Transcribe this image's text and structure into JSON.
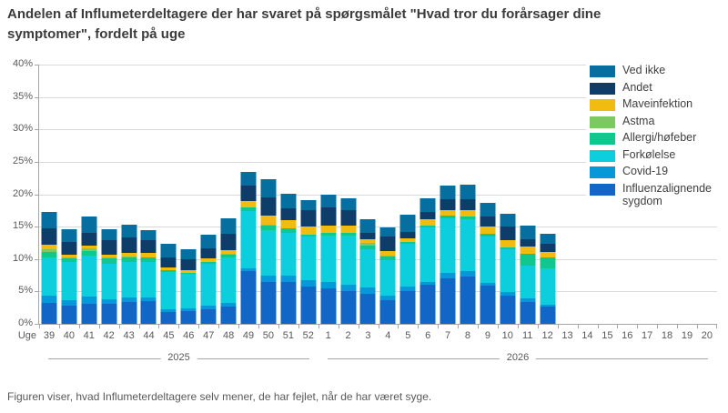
{
  "title": "Andelen af Influmeterdeltagere der har svaret på spørgsmålet \"Hvad tror du forårsager dine symptomer\", fordelt på uge",
  "footer": "Figuren viser, hvad Influmeterdeltagere selv mener, de har fejlet, når de har været syge.",
  "axis": {
    "uge_label": "Uge",
    "y_tick_labels": [
      "40%",
      "35%",
      "30%",
      "25%",
      "20%",
      "15%",
      "10%",
      "5%",
      "0%"
    ],
    "year_groups": [
      {
        "label": "2025",
        "start": 0,
        "count": 14
      },
      {
        "label": "2026",
        "start": 14,
        "count": 20
      }
    ]
  },
  "chart_data": {
    "type": "bar",
    "subtype": "stacked",
    "title": "Andelen af Influmeterdeltagere der har svaret på spørgsmålet \"Hvad tror du forårsager dine symptomer\", fordelt på uge",
    "xlabel": "Uge",
    "ylabel": "",
    "ylim": [
      0,
      40
    ],
    "grid": true,
    "legend_position": "right",
    "categories": [
      "39",
      "40",
      "41",
      "42",
      "43",
      "44",
      "45",
      "46",
      "47",
      "48",
      "49",
      "50",
      "51",
      "52",
      "1",
      "2",
      "3",
      "4",
      "5",
      "6",
      "7",
      "8",
      "9",
      "10",
      "11",
      "12",
      "13",
      "14",
      "15",
      "16",
      "17",
      "18",
      "19",
      "20"
    ],
    "series": [
      {
        "name": "Influenzalignende sygdom",
        "color": "#1267C6",
        "values": [
          3.3,
          2.8,
          3.1,
          3.1,
          3.4,
          3.5,
          1.8,
          1.9,
          2.3,
          2.6,
          8.2,
          6.5,
          6.5,
          5.8,
          5.5,
          5.1,
          4.6,
          3.7,
          5.1,
          6.0,
          7.0,
          7.3,
          5.9,
          4.3,
          3.4,
          2.6,
          0,
          0,
          0,
          0,
          0,
          0,
          0,
          0
        ]
      },
      {
        "name": "Covid-19",
        "color": "#0698D8",
        "values": [
          1.0,
          0.8,
          1.1,
          0.7,
          0.7,
          0.6,
          0.5,
          0.5,
          0.5,
          0.6,
          0.4,
          1.0,
          0.9,
          1.0,
          1.0,
          1.0,
          1.0,
          0.7,
          0.7,
          0.5,
          0.9,
          0.8,
          0.4,
          0.6,
          0.5,
          0.4,
          0,
          0,
          0,
          0,
          0,
          0,
          0,
          0
        ]
      },
      {
        "name": "Forkølelse",
        "color": "#0CCEDC",
        "values": [
          5.9,
          5.9,
          6.4,
          5.5,
          5.5,
          5.5,
          5.7,
          5.3,
          6.5,
          7.1,
          8.8,
          7.0,
          6.7,
          6.7,
          7.1,
          7.5,
          5.9,
          5.4,
          6.6,
          8.4,
          8.4,
          8.1,
          7.2,
          6.6,
          5.1,
          5.6,
          0,
          0,
          0,
          0,
          0,
          0,
          0,
          0
        ]
      },
      {
        "name": "Allergi/høfeber",
        "color": "#10C78D",
        "values": [
          0.9,
          0.6,
          0.6,
          0.8,
          0.7,
          0.6,
          0.3,
          0.2,
          0.2,
          0.4,
          0.5,
          0.7,
          0.6,
          0.3,
          0.4,
          0.5,
          0.6,
          0.6,
          0.2,
          0.3,
          0.4,
          0.3,
          0.4,
          0.3,
          1.8,
          1.7,
          0,
          0,
          0,
          0,
          0,
          0,
          0,
          0
        ]
      },
      {
        "name": "Astma",
        "color": "#7DC861",
        "values": [
          0.4,
          0.1,
          0.5,
          0.1,
          0.1,
          0.1,
          0,
          0,
          0,
          0.1,
          0.1,
          0.1,
          0.1,
          0,
          0.1,
          0,
          0.4,
          0.1,
          0,
          0,
          0,
          0,
          0,
          0,
          0,
          0,
          0,
          0,
          0,
          0,
          0,
          0,
          0,
          0
        ]
      },
      {
        "name": "Maveinfektion",
        "color": "#F2BB0F",
        "values": [
          0.7,
          0.5,
          0.4,
          0.5,
          0.6,
          0.6,
          0.4,
          0.4,
          0.6,
          0.6,
          0.9,
          1.4,
          1.2,
          1.2,
          1.1,
          1.0,
          0.6,
          0.7,
          0.6,
          0.9,
          0.8,
          1.1,
          1.1,
          1.1,
          1.1,
          0.8,
          0,
          0,
          0,
          0,
          0,
          0,
          0,
          0
        ]
      },
      {
        "name": "Andet",
        "color": "#0F3D69",
        "values": [
          2.6,
          2.0,
          1.9,
          2.2,
          2.3,
          2.0,
          1.6,
          1.7,
          1.6,
          2.5,
          2.4,
          2.8,
          1.9,
          2.5,
          2.8,
          2.5,
          1.0,
          2.3,
          1.0,
          1.2,
          1.8,
          1.7,
          1.6,
          2.1,
          1.1,
          1.2,
          0,
          0,
          0,
          0,
          0,
          0,
          0,
          0
        ]
      },
      {
        "name": "Ved ikke",
        "color": "#076FA0",
        "values": [
          2.5,
          1.9,
          2.5,
          1.7,
          2.0,
          1.5,
          2.0,
          1.5,
          2.0,
          2.4,
          2.2,
          2.8,
          2.2,
          1.6,
          1.9,
          1.8,
          2.0,
          1.4,
          2.6,
          2.1,
          2.1,
          2.2,
          2.1,
          2.0,
          2.1,
          1.6,
          0,
          0,
          0,
          0,
          0,
          0,
          0,
          0
        ]
      }
    ]
  },
  "style": {
    "gridline_color": "#d9d9d9",
    "axis_color": "#a6a6a6",
    "axis_label_color": "#595959",
    "title_color": "#3b3b3b",
    "legend_text_color": "#404040"
  }
}
